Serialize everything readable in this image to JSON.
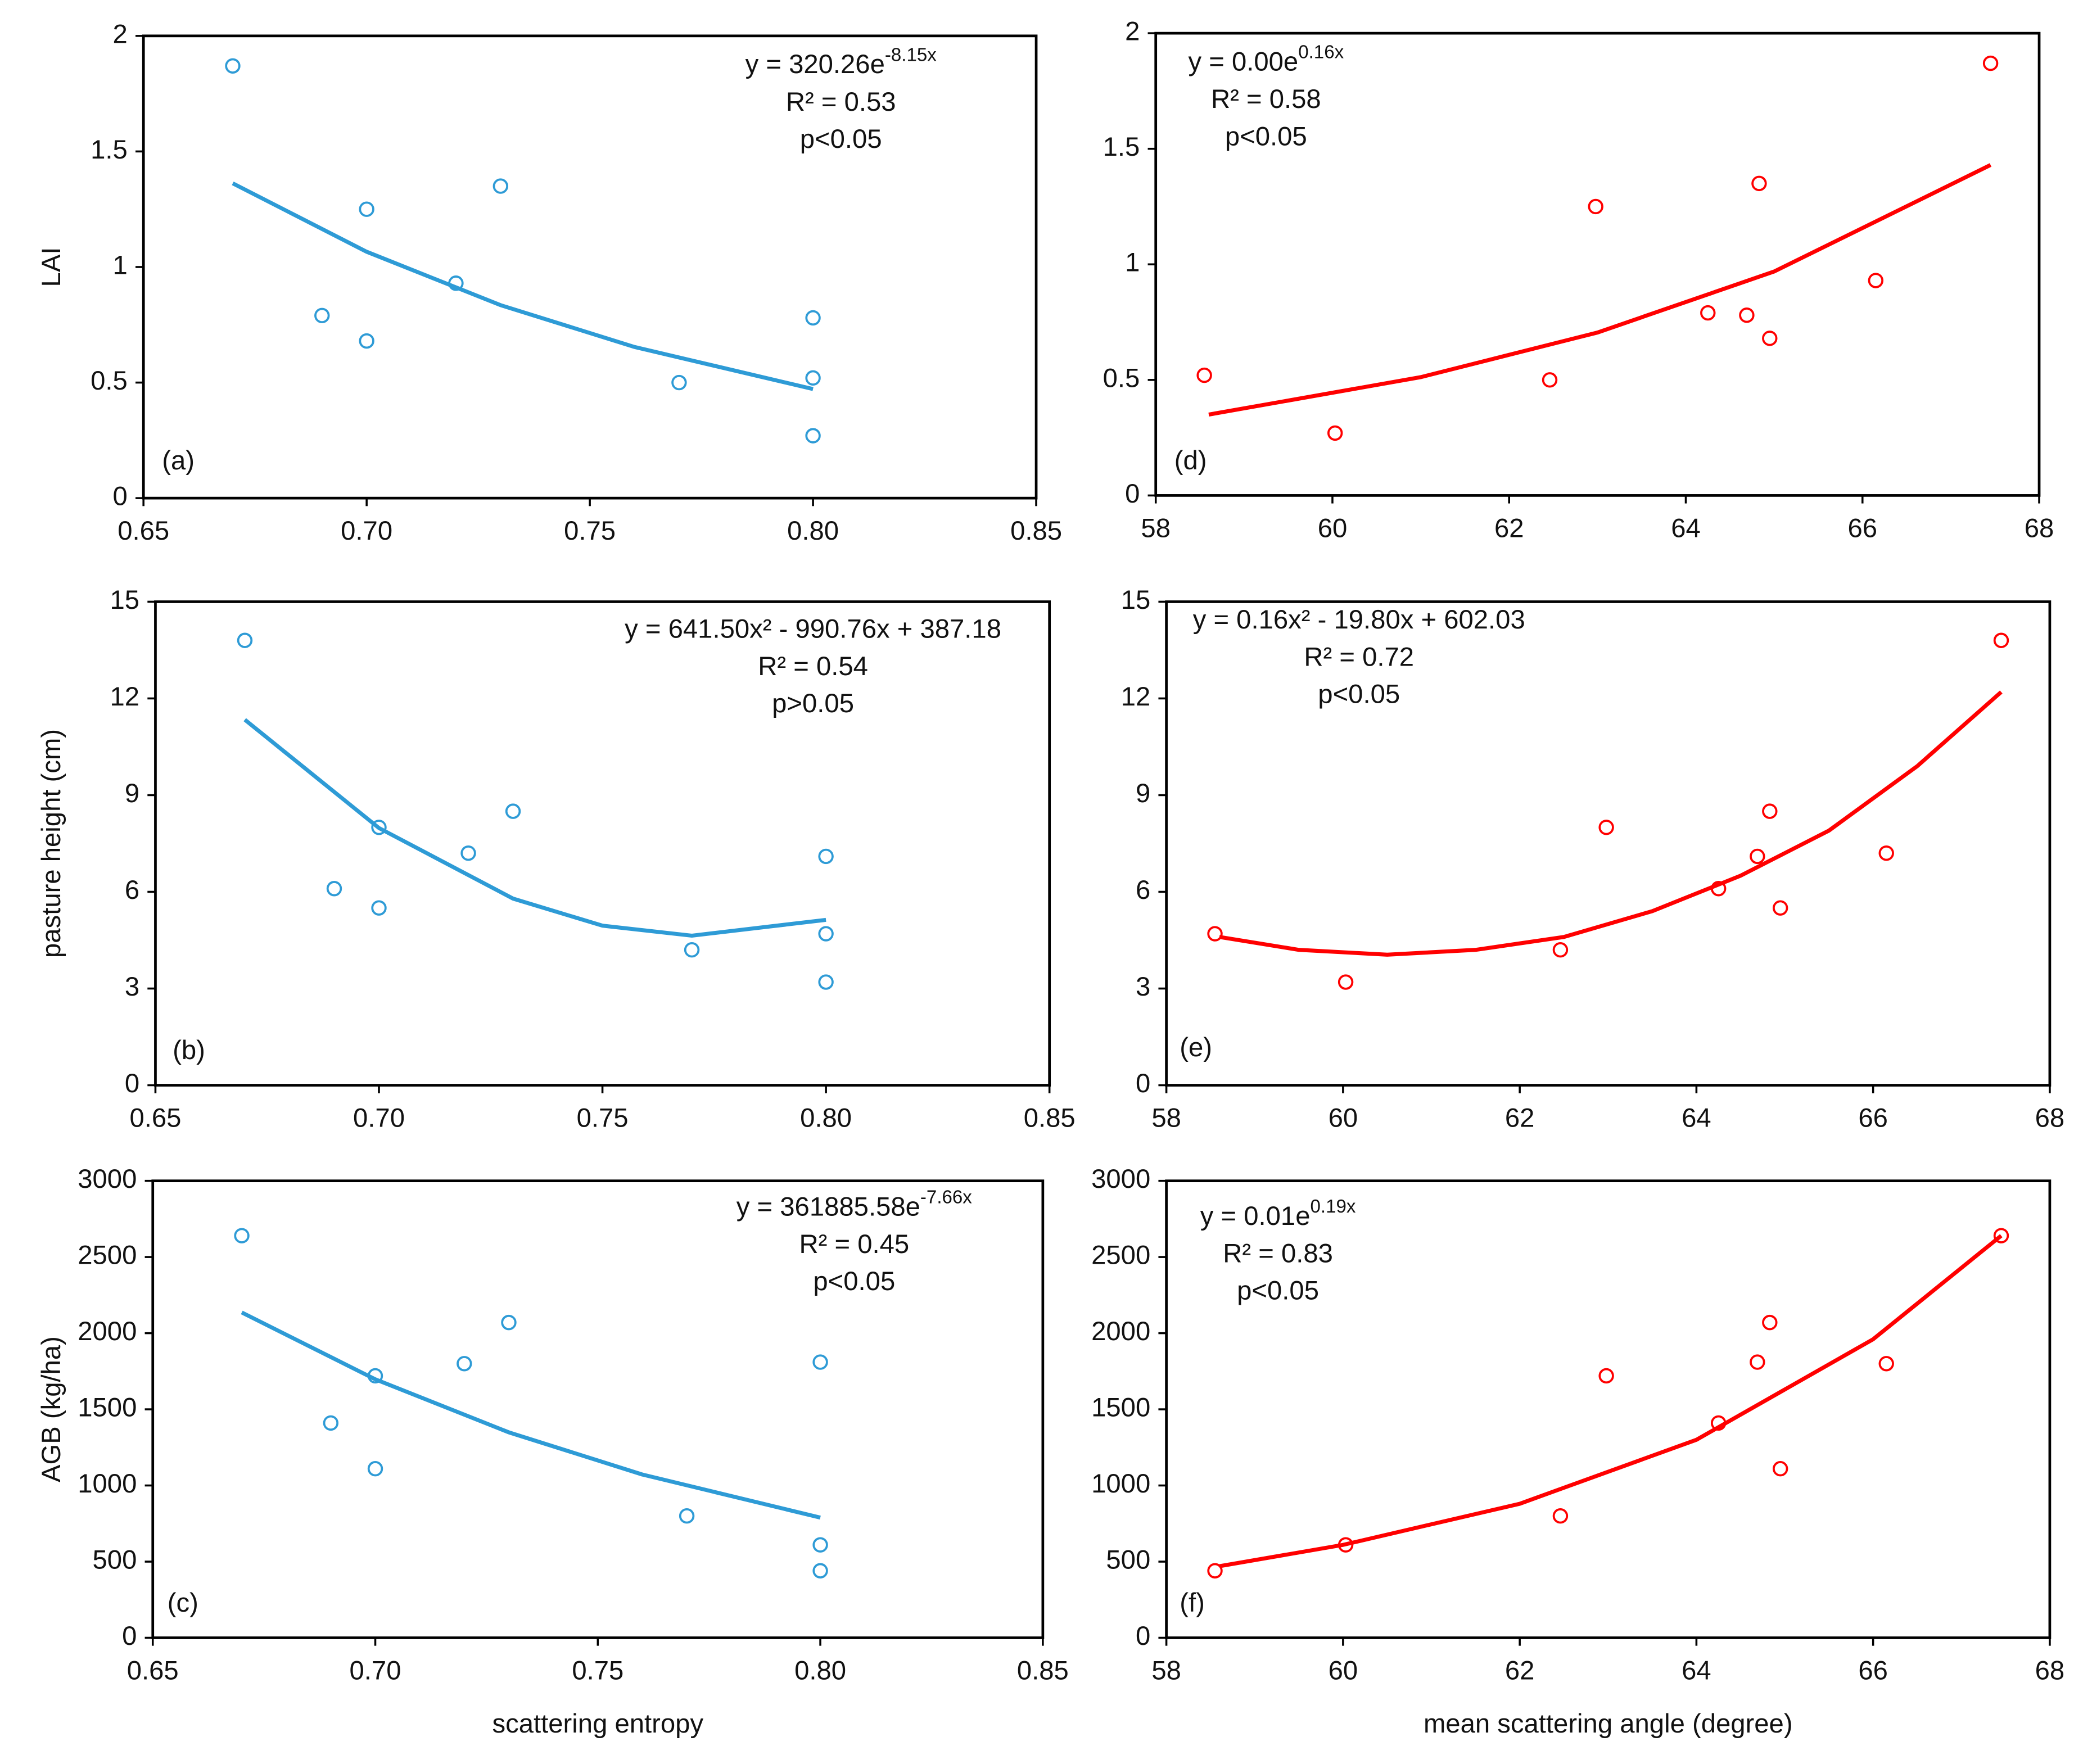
{
  "chart_data": [
    {
      "type": "scatter",
      "panel_label": "(a)",
      "y_label": "LAI",
      "equation": "y = 320.26e",
      "equation_exponent": "-8.15x",
      "r2": "R² = 0.53",
      "p": "p<0.05",
      "xlim": [
        0.65,
        0.85
      ],
      "xticks": [
        0.65,
        {
          "value": 0.7,
          "label": "0.70"
        },
        0.75,
        {
          "value": 0.8,
          "label": "0.80"
        },
        0.85
      ],
      "ylim": [
        0,
        2
      ],
      "yticks": [
        0,
        0.5,
        1,
        1.5,
        2
      ],
      "series": [
        {
          "color": "#2e9bd6",
          "marker": "circle",
          "x": [
            0.67,
            0.69,
            0.7,
            0.7,
            0.72,
            0.73,
            0.77,
            0.8,
            0.8,
            0.8
          ],
          "values": [
            1.87,
            0.79,
            1.25,
            0.68,
            0.93,
            1.35,
            0.5,
            0.78,
            0.52,
            0.27
          ]
        },
        {
          "color": "#2e9bd6",
          "marker": "line",
          "x": [
            0.67,
            0.7,
            0.73,
            0.76,
            0.8
          ],
          "values": [
            1.362,
            1.066,
            0.835,
            0.654,
            0.472
          ]
        }
      ]
    },
    {
      "type": "scatter",
      "panel_label": "(d)",
      "equation": "y = 0.00e",
      "equation_exponent": "0.16x",
      "r2": "R² = 0.58",
      "p": "p<0.05",
      "xlim": [
        58,
        68
      ],
      "xticks": [
        58,
        60,
        62,
        64,
        66,
        68
      ],
      "ylim": [
        0,
        2
      ],
      "yticks": [
        0,
        0.5,
        1,
        1.5,
        2
      ],
      "series": [
        {
          "color": "#ff0000",
          "marker": "circle",
          "x": [
            58.55,
            60.03,
            62.46,
            62.98,
            64.25,
            64.69,
            64.83,
            64.95,
            66.15,
            67.45
          ],
          "values": [
            0.52,
            0.27,
            0.5,
            1.25,
            0.79,
            0.78,
            1.35,
            0.68,
            0.93,
            1.87
          ]
        },
        {
          "color": "#ff0000",
          "marker": "line",
          "x": [
            58.6,
            61,
            63,
            65,
            67.45
          ],
          "values": [
            0.35,
            0.512,
            0.705,
            0.969,
            1.43
          ]
        }
      ]
    },
    {
      "type": "scatter",
      "panel_label": "(b)",
      "y_label": "pasture height (cm)",
      "equation": "y = 641.50x² - 990.76x + 387.18",
      "r2": "R² = 0.54",
      "p": "p>0.05",
      "xlim": [
        0.65,
        0.85
      ],
      "xticks": [
        0.65,
        {
          "value": 0.7,
          "label": "0.70"
        },
        0.75,
        {
          "value": 0.8,
          "label": "0.80"
        },
        0.85
      ],
      "ylim": [
        0,
        15
      ],
      "yticks": [
        0,
        3,
        6,
        9,
        12,
        15
      ],
      "series": [
        {
          "color": "#2e9bd6",
          "marker": "circle",
          "x": [
            0.67,
            0.69,
            0.7,
            0.7,
            0.72,
            0.73,
            0.77,
            0.8,
            0.8,
            0.8
          ],
          "values": [
            13.8,
            6.1,
            8.0,
            5.5,
            7.2,
            8.5,
            4.2,
            7.1,
            4.7,
            3.2
          ]
        },
        {
          "color": "#2e9bd6",
          "marker": "line",
          "x": [
            0.67,
            0.7,
            0.73,
            0.75,
            0.77,
            0.8
          ],
          "values": [
            11.34,
            7.98,
            5.79,
            4.95,
            4.64,
            5.13
          ]
        }
      ]
    },
    {
      "type": "scatter",
      "panel_label": "(e)",
      "equation": "y = 0.16x² - 19.80x + 602.03",
      "r2": "R² = 0.72",
      "p": "p<0.05",
      "xlim": [
        58,
        68
      ],
      "xticks": [
        58,
        60,
        62,
        64,
        66,
        68
      ],
      "ylim": [
        0,
        15
      ],
      "yticks": [
        0,
        3,
        6,
        9,
        12,
        15
      ],
      "series": [
        {
          "color": "#ff0000",
          "marker": "circle",
          "x": [
            58.55,
            60.03,
            62.46,
            62.98,
            64.25,
            64.69,
            64.83,
            64.95,
            66.15,
            67.45
          ],
          "values": [
            4.7,
            3.2,
            4.2,
            8.0,
            6.1,
            7.1,
            8.5,
            5.5,
            7.2,
            13.8
          ]
        },
        {
          "color": "#ff0000",
          "marker": "line",
          "x": [
            58.6,
            59.5,
            60.5,
            61.5,
            62.5,
            63.5,
            64.5,
            65.5,
            66.5,
            67.45
          ],
          "values": [
            4.6,
            4.2,
            4.05,
            4.2,
            4.6,
            5.4,
            6.5,
            7.9,
            9.9,
            12.2
          ]
        }
      ]
    },
    {
      "type": "scatter",
      "panel_label": "(c)",
      "y_label": "AGB (kg/ha)",
      "x_label": "scattering entropy",
      "equation": "y = 361885.58e",
      "equation_exponent": "-7.66x",
      "r2": "R² = 0.45",
      "p": "p<0.05",
      "xlim": [
        0.65,
        0.85
      ],
      "xticks": [
        0.65,
        {
          "value": 0.7,
          "label": "0.70"
        },
        0.75,
        {
          "value": 0.8,
          "label": "0.80"
        },
        0.85
      ],
      "ylim": [
        0,
        3000
      ],
      "yticks": [
        0,
        500,
        1000,
        1500,
        2000,
        2500,
        3000
      ],
      "series": [
        {
          "color": "#2e9bd6",
          "marker": "circle",
          "x": [
            0.67,
            0.69,
            0.7,
            0.7,
            0.72,
            0.73,
            0.77,
            0.8,
            0.8,
            0.8
          ],
          "values": [
            2640,
            1410,
            1720,
            1110,
            1800,
            2070,
            800,
            1810,
            610,
            440
          ]
        },
        {
          "color": "#2e9bd6",
          "marker": "line",
          "x": [
            0.67,
            0.7,
            0.73,
            0.76,
            0.8
          ],
          "values": [
            2136,
            1697,
            1349,
            1072,
            789
          ]
        }
      ]
    },
    {
      "type": "scatter",
      "panel_label": "(f)",
      "x_label": "mean scattering angle (degree)",
      "equation": "y = 0.01e",
      "equation_exponent": "0.19x",
      "r2": "R² = 0.83",
      "p": "p<0.05",
      "xlim": [
        58,
        68
      ],
      "xticks": [
        58,
        60,
        62,
        64,
        66,
        68
      ],
      "ylim": [
        0,
        3000
      ],
      "yticks": [
        0,
        500,
        1000,
        1500,
        2000,
        2500,
        3000
      ],
      "series": [
        {
          "color": "#ff0000",
          "marker": "circle",
          "x": [
            58.55,
            60.03,
            62.46,
            62.98,
            64.25,
            64.69,
            64.83,
            64.95,
            66.15,
            67.45
          ],
          "values": [
            440,
            610,
            800,
            1720,
            1410,
            1810,
            2070,
            1110,
            1800,
            2640
          ]
        },
        {
          "color": "#ff0000",
          "marker": "line",
          "x": [
            58.6,
            60,
            62,
            64,
            66,
            67.45
          ],
          "values": [
            470,
            610,
            880,
            1300,
            1960,
            2640
          ]
        }
      ]
    }
  ]
}
